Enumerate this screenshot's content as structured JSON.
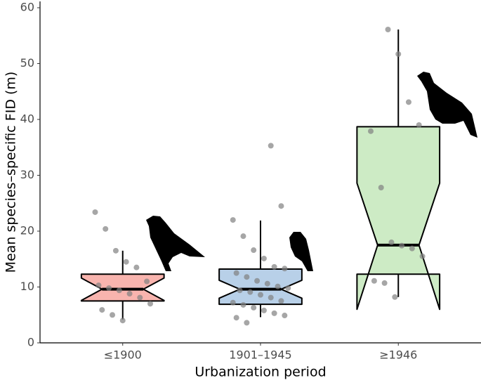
{
  "chart_data": {
    "type": "boxplot",
    "x_label": "Urbanization period",
    "y_label": "Mean species–specific FID (m)",
    "categories": [
      "≤1900",
      "1901–1945",
      "≥1946"
    ],
    "boxes": [
      {
        "whisker_low": 4.2,
        "q1": 7.5,
        "notch_low": 7.6,
        "median": 9.6,
        "notch_high": 11.6,
        "q3": 12.3,
        "whisker_high": 16.5,
        "color": "#f8b4ae"
      },
      {
        "whisker_low": 4.6,
        "q1": 6.9,
        "notch_low": 8.0,
        "median": 9.6,
        "notch_high": 11.2,
        "q3": 13.2,
        "whisker_high": 21.9,
        "color": "#b8d0e8"
      },
      {
        "whisker_low": 8.2,
        "q1": 12.3,
        "notch_low": 6.0,
        "median": 17.5,
        "notch_high": 28.6,
        "q3": 38.7,
        "whisker_high": 56.1,
        "color": "#cdebc5"
      }
    ],
    "points": [
      [
        23.4,
        20.4,
        16.5,
        14.5,
        13.5,
        11.0,
        10.3,
        9.8,
        9.4,
        8.8,
        8.1,
        7.0,
        5.9,
        5.0,
        4.0
      ],
      [
        35.3,
        24.5,
        22.0,
        19.1,
        16.6,
        15.1,
        13.6,
        13.3,
        12.5,
        11.8,
        11.1,
        10.6,
        10.1,
        9.8,
        9.4,
        9.1,
        8.6,
        8.1,
        7.5,
        7.2,
        6.8,
        6.3,
        5.8,
        5.3,
        4.9,
        4.5,
        3.6
      ],
      [
        56.1,
        51.7,
        43.1,
        39.0,
        37.9,
        27.8,
        18.0,
        17.4,
        16.9,
        15.5,
        11.1,
        10.7,
        8.2
      ]
    ],
    "point_color": "#808080",
    "ylim": [
      0,
      60
    ],
    "yticks": [
      0,
      10,
      20,
      30,
      40,
      50,
      60
    ]
  }
}
